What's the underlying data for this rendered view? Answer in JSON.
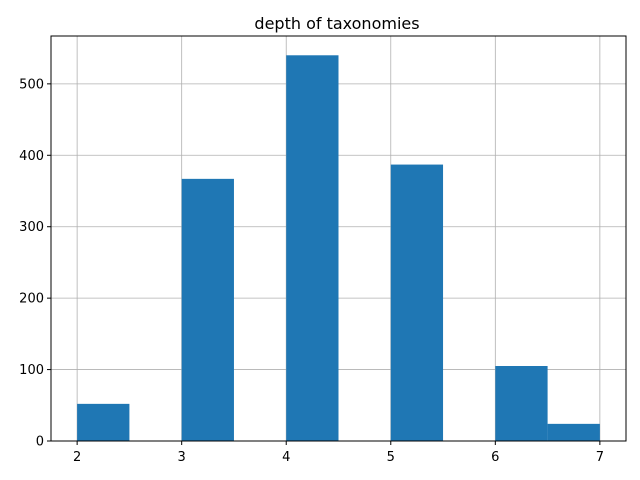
{
  "chart_data": {
    "type": "bar",
    "title": "depth of taxonomies",
    "xlabel": "",
    "ylabel": "",
    "bins": [
      {
        "x0": 2.0,
        "x1": 2.5,
        "value": 52
      },
      {
        "x0": 2.5,
        "x1": 3.0,
        "value": 0
      },
      {
        "x0": 3.0,
        "x1": 3.5,
        "value": 367
      },
      {
        "x0": 3.5,
        "x1": 4.0,
        "value": 0
      },
      {
        "x0": 4.0,
        "x1": 4.5,
        "value": 540
      },
      {
        "x0": 4.5,
        "x1": 5.0,
        "value": 0
      },
      {
        "x0": 5.0,
        "x1": 5.5,
        "value": 387
      },
      {
        "x0": 5.5,
        "x1": 6.0,
        "value": 0
      },
      {
        "x0": 6.0,
        "x1": 6.5,
        "value": 105
      },
      {
        "x0": 6.5,
        "x1": 7.0,
        "value": 24
      }
    ],
    "xlim": [
      1.75,
      7.25
    ],
    "ylim": [
      0,
      567
    ],
    "xticks": [
      2,
      3,
      4,
      5,
      6,
      7
    ],
    "yticks": [
      0,
      100,
      200,
      300,
      400,
      500
    ],
    "grid": true,
    "bar_color": "#1f77b4"
  }
}
